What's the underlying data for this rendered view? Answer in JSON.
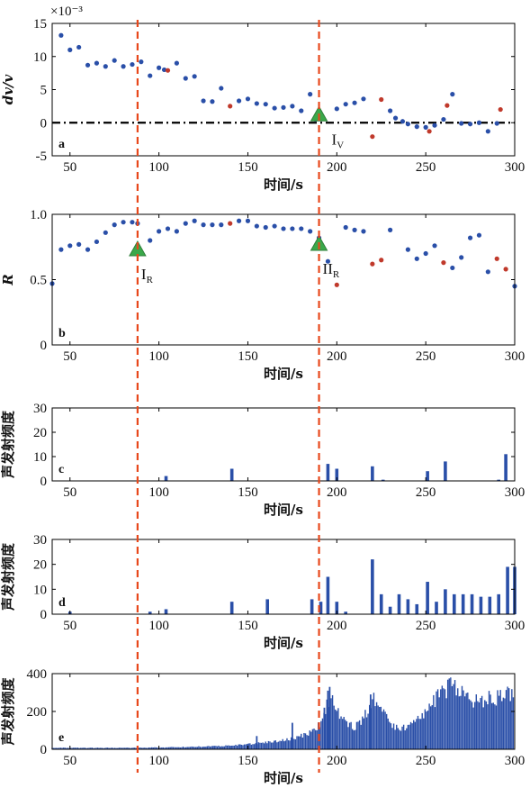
{
  "colors": {
    "point": "#2a4fa8",
    "point_alt": "#c0392b",
    "bar": "#2a4fa8",
    "marker_line": "#e8481c",
    "triangle": "#3aa84a",
    "axis": "#000000"
  },
  "markers": {
    "x": [
      88,
      190
    ]
  },
  "chart_data": [
    {
      "id": "a",
      "type": "scatter",
      "panel_label": "a",
      "ylabel": "dv/v",
      "scale_label": "×10⁻³",
      "xlabel": "时间/s",
      "xlim": [
        40,
        300
      ],
      "ylim": [
        -5,
        15
      ],
      "xticks": [
        50,
        100,
        150,
        200,
        250,
        300
      ],
      "yticks": [
        -5,
        0,
        5,
        10,
        15
      ],
      "zero_line": true,
      "annotation": {
        "text": "I",
        "sub": "V",
        "x": 190
      },
      "points_blue": [
        [
          45,
          13.2
        ],
        [
          50,
          11.0
        ],
        [
          55,
          11.4
        ],
        [
          60,
          8.7
        ],
        [
          65,
          9.0
        ],
        [
          70,
          8.5
        ],
        [
          75,
          9.4
        ],
        [
          80,
          8.5
        ],
        [
          85,
          8.8
        ],
        [
          90,
          9.2
        ],
        [
          95,
          7.1
        ],
        [
          100,
          8.3
        ],
        [
          103,
          8.0
        ],
        [
          110,
          9.0
        ],
        [
          115,
          6.7
        ],
        [
          120,
          7.0
        ],
        [
          125,
          3.3
        ],
        [
          130,
          3.2
        ],
        [
          135,
          5.2
        ],
        [
          145,
          3.3
        ],
        [
          150,
          3.6
        ],
        [
          155,
          2.9
        ],
        [
          160,
          2.8
        ],
        [
          165,
          2.2
        ],
        [
          170,
          2.3
        ],
        [
          175,
          2.5
        ],
        [
          180,
          1.8
        ],
        [
          185,
          4.3
        ],
        [
          188,
          0.5
        ],
        [
          200,
          2.1
        ],
        [
          205,
          2.8
        ],
        [
          210,
          3.0
        ],
        [
          215,
          3.6
        ],
        [
          230,
          1.8
        ],
        [
          233,
          0.7
        ],
        [
          237,
          0.2
        ],
        [
          240,
          -0.2
        ],
        [
          245,
          -0.6
        ],
        [
          250,
          -0.7
        ],
        [
          255,
          -0.4
        ],
        [
          260,
          0.5
        ],
        [
          265,
          4.3
        ],
        [
          270,
          -0.1
        ],
        [
          275,
          -0.2
        ],
        [
          280,
          0.0
        ],
        [
          285,
          -1.3
        ],
        [
          290,
          -0.1
        ]
      ],
      "points_red": [
        [
          105,
          7.9
        ],
        [
          140,
          2.5
        ],
        [
          220,
          -2.1
        ],
        [
          225,
          3.5
        ],
        [
          252,
          -1.3
        ],
        [
          262,
          2.6
        ],
        [
          292,
          2.0
        ]
      ]
    },
    {
      "id": "b",
      "type": "scatter",
      "panel_label": "b",
      "ylabel": "R",
      "xlabel": "时间/s",
      "xlim": [
        40,
        300
      ],
      "ylim": [
        0,
        1.0
      ],
      "xticks": [
        50,
        100,
        150,
        200,
        250,
        300
      ],
      "yticks": [
        0,
        0.5,
        1.0
      ],
      "ytick_labels": [
        "0",
        "0.5",
        "1.0"
      ],
      "annotations": [
        {
          "text": "I",
          "sub": "R",
          "x": 88
        },
        {
          "text": "II",
          "sub": "R",
          "x": 190
        }
      ],
      "points_blue": [
        [
          40,
          0.47
        ],
        [
          45,
          0.73
        ],
        [
          50,
          0.76
        ],
        [
          55,
          0.77
        ],
        [
          60,
          0.73
        ],
        [
          65,
          0.79
        ],
        [
          70,
          0.86
        ],
        [
          75,
          0.92
        ],
        [
          80,
          0.94
        ],
        [
          85,
          0.94
        ],
        [
          88,
          0.93
        ],
        [
          95,
          0.8
        ],
        [
          100,
          0.87
        ],
        [
          105,
          0.89
        ],
        [
          110,
          0.87
        ],
        [
          115,
          0.93
        ],
        [
          120,
          0.95
        ],
        [
          125,
          0.92
        ],
        [
          130,
          0.92
        ],
        [
          135,
          0.92
        ],
        [
          145,
          0.95
        ],
        [
          150,
          0.95
        ],
        [
          155,
          0.91
        ],
        [
          160,
          0.9
        ],
        [
          165,
          0.91
        ],
        [
          170,
          0.89
        ],
        [
          175,
          0.89
        ],
        [
          180,
          0.89
        ],
        [
          185,
          0.87
        ],
        [
          190,
          0.82
        ],
        [
          195,
          0.64
        ],
        [
          205,
          0.9
        ],
        [
          210,
          0.88
        ],
        [
          215,
          0.87
        ],
        [
          230,
          0.88
        ],
        [
          240,
          0.73
        ],
        [
          245,
          0.66
        ],
        [
          250,
          0.7
        ],
        [
          255,
          0.76
        ],
        [
          265,
          0.59
        ],
        [
          270,
          0.67
        ],
        [
          275,
          0.82
        ],
        [
          280,
          0.84
        ],
        [
          285,
          0.56
        ],
        [
          300,
          0.45
        ]
      ],
      "points_red": [
        [
          140,
          0.93
        ],
        [
          200,
          0.46
        ],
        [
          220,
          0.62
        ],
        [
          225,
          0.65
        ],
        [
          260,
          0.63
        ],
        [
          290,
          0.66
        ],
        [
          295,
          0.58
        ]
      ]
    },
    {
      "id": "c",
      "type": "bar",
      "panel_label": "c",
      "ylabel": "声发射频度",
      "xlabel": "时间/s",
      "xlim": [
        40,
        300
      ],
      "ylim": [
        0,
        30
      ],
      "xticks": [
        50,
        100,
        150,
        200,
        250,
        300
      ],
      "yticks": [
        0,
        10,
        20,
        30
      ],
      "bars": [
        [
          104,
          2
        ],
        [
          141,
          5
        ],
        [
          195,
          7
        ],
        [
          200,
          5
        ],
        [
          220,
          6
        ],
        [
          226,
          0.5
        ],
        [
          251,
          4
        ],
        [
          261,
          8
        ],
        [
          291,
          0.5
        ],
        [
          295,
          11
        ]
      ]
    },
    {
      "id": "d",
      "type": "bar",
      "panel_label": "d",
      "ylabel": "声发射频度",
      "xlabel": "时间/s",
      "xlim": [
        40,
        300
      ],
      "ylim": [
        0,
        30
      ],
      "xticks": [
        50,
        100,
        150,
        200,
        250,
        300
      ],
      "yticks": [
        0,
        10,
        20,
        30
      ],
      "bars": [
        [
          50,
          1
        ],
        [
          95,
          1
        ],
        [
          104,
          2
        ],
        [
          141,
          5
        ],
        [
          161,
          6
        ],
        [
          186,
          6
        ],
        [
          191,
          5
        ],
        [
          195,
          15
        ],
        [
          200,
          5
        ],
        [
          205,
          1
        ],
        [
          220,
          22
        ],
        [
          225,
          8
        ],
        [
          230,
          3
        ],
        [
          235,
          8
        ],
        [
          240,
          6
        ],
        [
          245,
          4
        ],
        [
          251,
          13
        ],
        [
          256,
          5
        ],
        [
          261,
          10
        ],
        [
          266,
          8
        ],
        [
          271,
          8
        ],
        [
          276,
          8
        ],
        [
          281,
          7
        ],
        [
          286,
          7
        ],
        [
          291,
          8
        ],
        [
          296,
          19
        ],
        [
          300,
          19
        ]
      ]
    },
    {
      "id": "e",
      "type": "bar",
      "panel_label": "e",
      "ylabel": "声发射频度",
      "xlabel": "时间/s",
      "xlim": [
        40,
        300
      ],
      "ylim": [
        0,
        400
      ],
      "xticks": [
        50,
        100,
        150,
        200,
        250,
        300
      ],
      "yticks": [
        0,
        200,
        400
      ],
      "envelope": [
        [
          40,
          8
        ],
        [
          60,
          8
        ],
        [
          80,
          8
        ],
        [
          100,
          10
        ],
        [
          120,
          14
        ],
        [
          140,
          20
        ],
        [
          150,
          28
        ],
        [
          160,
          38
        ],
        [
          170,
          50
        ],
        [
          180,
          75
        ],
        [
          188,
          110
        ],
        [
          192,
          170
        ],
        [
          195,
          280
        ],
        [
          197,
          320
        ],
        [
          200,
          210
        ],
        [
          205,
          150
        ],
        [
          210,
          120
        ],
        [
          215,
          170
        ],
        [
          220,
          270
        ],
        [
          222,
          280
        ],
        [
          225,
          220
        ],
        [
          230,
          150
        ],
        [
          235,
          110
        ],
        [
          240,
          130
        ],
        [
          245,
          170
        ],
        [
          250,
          220
        ],
        [
          255,
          280
        ],
        [
          260,
          330
        ],
        [
          263,
          355
        ],
        [
          266,
          350
        ],
        [
          270,
          310
        ],
        [
          275,
          270
        ],
        [
          280,
          275
        ],
        [
          285,
          285
        ],
        [
          290,
          290
        ],
        [
          295,
          300
        ],
        [
          300,
          310
        ]
      ],
      "spikes": [
        [
          155,
          70
        ],
        [
          175,
          140
        ],
        [
          193,
          220
        ],
        [
          195,
          310
        ],
        [
          196,
          330
        ],
        [
          219,
          290
        ]
      ]
    }
  ]
}
